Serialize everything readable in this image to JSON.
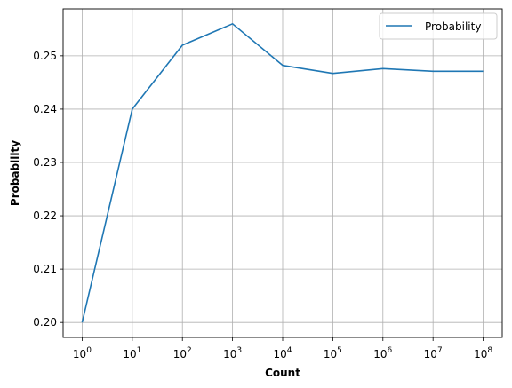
{
  "chart_data": {
    "type": "line",
    "title": "",
    "xlabel": "Count",
    "ylabel": "Probability",
    "xscale": "log",
    "x": [
      1,
      10,
      100,
      1000,
      10000,
      100000,
      1000000,
      10000000,
      100000000
    ],
    "x_tick_labels": [
      {
        "base": "10",
        "exp": "0"
      },
      {
        "base": "10",
        "exp": "1"
      },
      {
        "base": "10",
        "exp": "2"
      },
      {
        "base": "10",
        "exp": "3"
      },
      {
        "base": "10",
        "exp": "4"
      },
      {
        "base": "10",
        "exp": "5"
      },
      {
        "base": "10",
        "exp": "6"
      },
      {
        "base": "10",
        "exp": "7"
      },
      {
        "base": "10",
        "exp": "8"
      }
    ],
    "y_ticks": [
      0.2,
      0.21,
      0.22,
      0.23,
      0.24,
      0.25
    ],
    "y_tick_labels": [
      "0.20",
      "0.21",
      "0.22",
      "0.23",
      "0.24",
      "0.25"
    ],
    "ylim": [
      0.1972,
      0.2588
    ],
    "xlim_decades": [
      -0.38,
      8.38
    ],
    "grid": true,
    "legend_position": "top-right",
    "series": [
      {
        "name": "Probability",
        "color": "#1f77b4",
        "values": [
          0.2,
          0.24,
          0.252,
          0.256,
          0.2482,
          0.2467,
          0.2476,
          0.2471,
          0.2471
        ]
      }
    ]
  }
}
